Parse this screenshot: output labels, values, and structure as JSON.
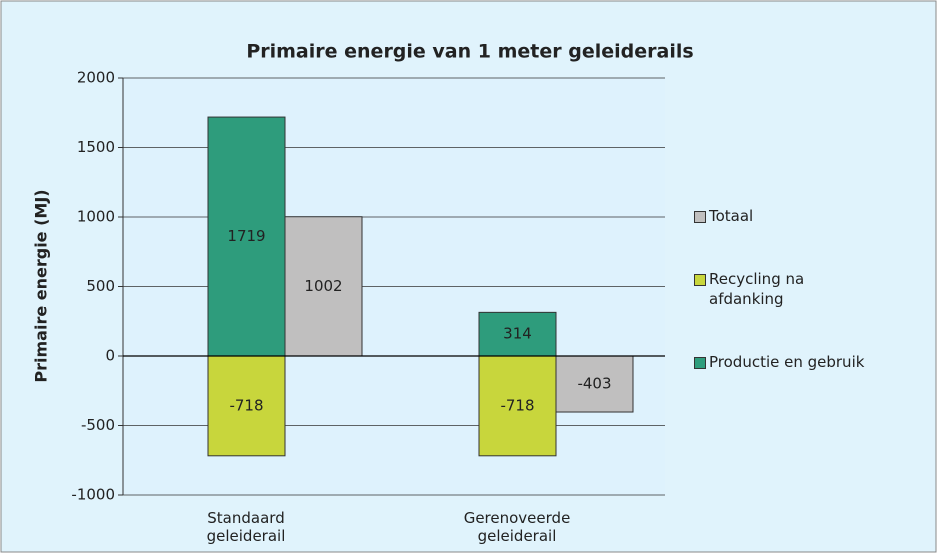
{
  "chart_data": {
    "type": "bar",
    "title": "Primaire energie van 1 meter geleiderails",
    "y_label": "Primaire energie (MJ)",
    "categories": [
      "Standaard geleiderail",
      "Gerenoveerde geleiderail"
    ],
    "series": [
      {
        "name": "Productie en gebruik",
        "color": "#2e9c7c",
        "stack": 0,
        "values": [
          1719,
          314
        ]
      },
      {
        "name": "Recycling na afdanking",
        "color": "#c8d63c",
        "stack": 0,
        "values": [
          -718,
          -718
        ]
      },
      {
        "name": "Totaal",
        "color": "#c0bfbf",
        "stack": 1,
        "values": [
          1002,
          -403
        ]
      }
    ],
    "ylim": [
      -1000,
      2000
    ],
    "yticks": [
      -1000,
      -500,
      0,
      500,
      1000,
      1500,
      2000
    ],
    "grid": true,
    "legend": "right"
  }
}
